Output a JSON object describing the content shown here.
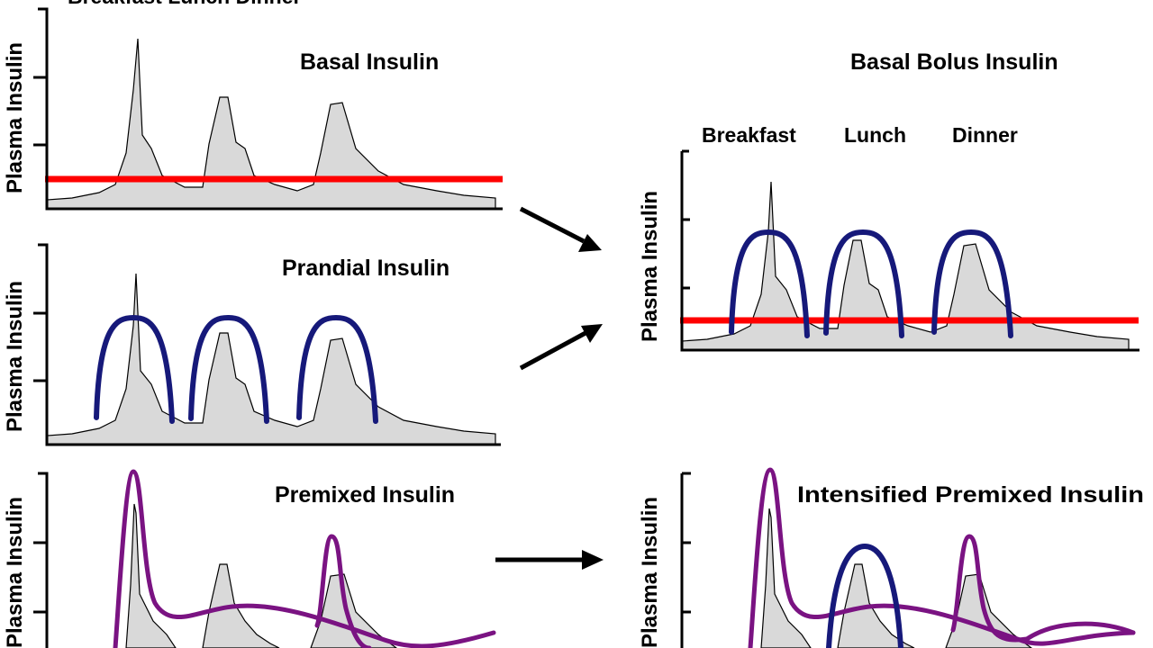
{
  "top_cropped_text": "Breakfast     Lunch     Dinner",
  "panels": {
    "basal": {
      "title": "Basal Insulin",
      "ylabel": "Plasma Insulin"
    },
    "prandial": {
      "title": "Prandial Insulin",
      "ylabel": "Plasma Insulin"
    },
    "basal_bolus": {
      "title": "Basal Bolus Insulin",
      "ylabel": "Plasma Insulin",
      "meals": [
        "Breakfast",
        "Lunch",
        "Dinner"
      ]
    },
    "premixed": {
      "title": "Premixed Insulin",
      "ylabel": "Plasma Insulin"
    },
    "intensified": {
      "title": "Intensified Premixed Insulin",
      "ylabel": "Plasma Insulin"
    }
  },
  "colors": {
    "basal_line": "#ff0000",
    "prandial_curve": "#16197a",
    "premixed_curve": "#7a1382",
    "physiologic_fill": "#d9d9d9"
  }
}
